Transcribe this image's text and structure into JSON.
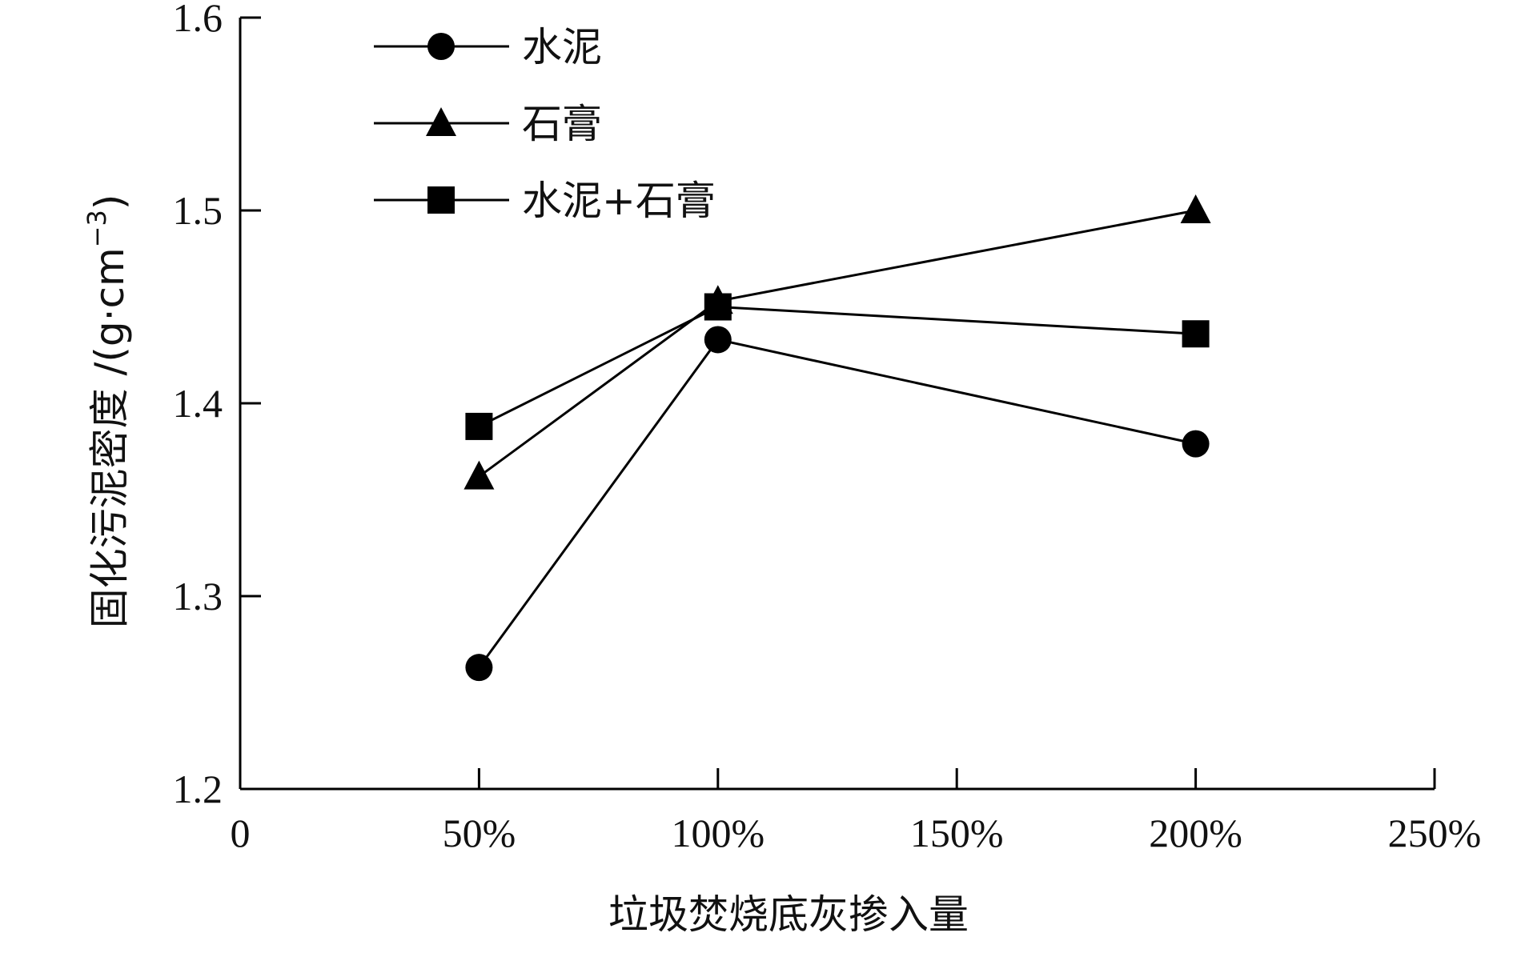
{
  "chart_data": {
    "type": "line",
    "x": [
      50,
      100,
      200
    ],
    "series": [
      {
        "name": "水泥",
        "marker": "circle",
        "values": [
          1.263,
          1.433,
          1.379
        ]
      },
      {
        "name": "石膏",
        "marker": "triangle",
        "values": [
          1.362,
          1.453,
          1.5
        ]
      },
      {
        "name": "水泥+石膏",
        "marker": "square",
        "values": [
          1.388,
          1.45,
          1.436
        ]
      }
    ],
    "xlabel": "垃圾焚烧底灰掺入量",
    "ylabel_main": "固化污泥密度 /(g·cm",
    "ylabel_exp": "−3",
    "ylabel_close": ")",
    "xlim": [
      0,
      250
    ],
    "ylim": [
      1.2,
      1.6
    ],
    "x_ticks": [
      0,
      50,
      100,
      150,
      200,
      250
    ],
    "x_tick_labels": [
      "0",
      "50%",
      "100%",
      "150%",
      "200%",
      "250%"
    ],
    "y_ticks": [
      1.2,
      1.3,
      1.4,
      1.5,
      1.6
    ],
    "y_tick_labels": [
      "1.2",
      "1.3",
      "1.4",
      "1.5",
      "1.6"
    ],
    "grid": false,
    "legend_position": "top-left",
    "line_color": "#000000"
  }
}
